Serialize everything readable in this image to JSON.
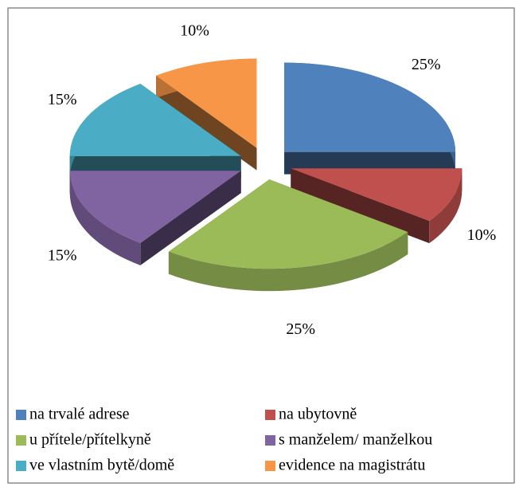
{
  "chart_data": {
    "type": "pie",
    "categories": [
      "na trvalé adrese",
      "na ubytovně",
      "u přítele/přítelkyně",
      "s manželem/ manželkou",
      "ve vlastním bytě/domě",
      "evidence na magistrátu"
    ],
    "values": [
      25,
      10,
      25,
      15,
      15,
      10
    ],
    "value_labels": [
      "25%",
      "10%",
      "25%",
      "15%",
      "15%",
      "10%"
    ],
    "colors": [
      "#4f81bd",
      "#c0504d",
      "#9bbb59",
      "#8064a2",
      "#4bacc6",
      "#f79646"
    ],
    "legend": "bottom"
  }
}
